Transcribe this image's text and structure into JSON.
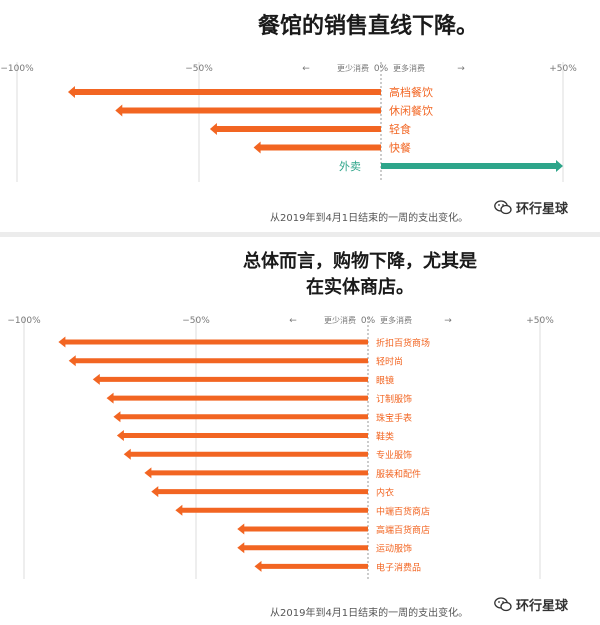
{
  "chart_data": [
    {
      "type": "bar",
      "title": "餐馆的销售直线下降。",
      "note": "从2019年到4月1日结束的一周的支出变化。",
      "axis_ticks": [
        "−100%",
        "−50%",
        "0%",
        "+50%"
      ],
      "less_label": "更少消费",
      "more_label": "更多消费",
      "arrow_left": "←",
      "arrow_right": "→",
      "xlim": [
        -100,
        50
      ],
      "categories": [
        "高档餐饮",
        "休闲餐饮",
        "轻食",
        "快餐",
        "外卖"
      ],
      "values": [
        -86,
        -73,
        -47,
        -35,
        50
      ],
      "colors": {
        "negative": "#f26522",
        "positive": "#2ea58a"
      }
    },
    {
      "type": "bar",
      "title_lines": [
        "总体而言，购物下降，尤其是",
        "在实体商店。"
      ],
      "note": "从2019年到4月1日结束的一周的支出变化。",
      "axis_ticks": [
        "−100%",
        "−50%",
        "0%",
        "+50%"
      ],
      "less_label": "更少消费",
      "more_label": "更多消费",
      "arrow_left": "←",
      "arrow_right": "→",
      "xlim": [
        -100,
        50
      ],
      "categories": [
        "折扣百货商场",
        "轻时尚",
        "眼镜",
        "订制服饰",
        "珠宝手表",
        "鞋类",
        "专业服饰",
        "服装和配件",
        "内衣",
        "中端百货商店",
        "高端百货商店",
        "运动服饰",
        "电子消费品"
      ],
      "values": [
        -90,
        -87,
        -80,
        -76,
        -74,
        -73,
        -71,
        -65,
        -63,
        -56,
        -38,
        -38,
        -33
      ],
      "colors": {
        "negative": "#f26522"
      }
    }
  ],
  "brand": {
    "name": "环行星球",
    "icon": "wechat-icon"
  }
}
